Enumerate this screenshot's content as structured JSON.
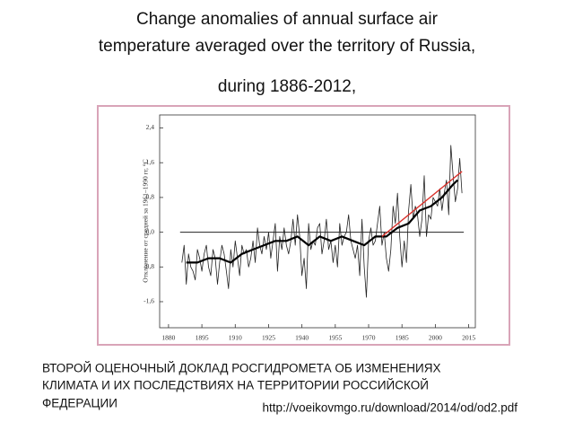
{
  "chart_data": {
    "type": "line",
    "title": "Change anomalies of annual surface air temperature averaged over the territory of Russia,",
    "subtitle": "during 1886-2012,",
    "ylabel": "Отклонение от средней за 1961–1990 гг, °С",
    "xlim": [
      1876,
      2018
    ],
    "ylim": [
      -2.2,
      2.7
    ],
    "xticks": [
      1880,
      1895,
      1910,
      1925,
      1940,
      1955,
      1970,
      1985,
      2000,
      2015
    ],
    "yticks": [
      {
        "value": -1.6,
        "label": "-1,6"
      },
      {
        "value": -0.8,
        "label": "-0,8"
      },
      {
        "value": 0,
        "label": "0,0"
      },
      {
        "value": 0.8,
        "label": "0,8"
      },
      {
        "value": 1.6,
        "label": "1,6"
      },
      {
        "value": 2.4,
        "label": "2,4"
      }
    ],
    "zero_line": true,
    "series": [
      {
        "color": "#222222",
        "width": 0.8,
        "x": [
          1886,
          1887,
          1888,
          1889,
          1890,
          1891,
          1892,
          1893,
          1894,
          1895,
          1896,
          1897,
          1898,
          1899,
          1900,
          1901,
          1902,
          1903,
          1904,
          1905,
          1906,
          1907,
          1908,
          1909,
          1910,
          1911,
          1912,
          1913,
          1914,
          1915,
          1916,
          1917,
          1918,
          1919,
          1920,
          1921,
          1922,
          1923,
          1924,
          1925,
          1926,
          1927,
          1928,
          1929,
          1930,
          1931,
          1932,
          1933,
          1934,
          1935,
          1936,
          1937,
          1938,
          1939,
          1940,
          1941,
          1942,
          1943,
          1944,
          1945,
          1946,
          1947,
          1948,
          1949,
          1950,
          1951,
          1952,
          1953,
          1954,
          1955,
          1956,
          1957,
          1958,
          1959,
          1960,
          1961,
          1962,
          1963,
          1964,
          1965,
          1966,
          1967,
          1968,
          1969,
          1970,
          1971,
          1972,
          1973,
          1974,
          1975,
          1976,
          1977,
          1978,
          1979,
          1980,
          1981,
          1982,
          1983,
          1984,
          1985,
          1986,
          1987,
          1988,
          1989,
          1990,
          1991,
          1992,
          1993,
          1994,
          1995,
          1996,
          1997,
          1998,
          1999,
          2000,
          2001,
          2002,
          2003,
          2004,
          2005,
          2006,
          2007,
          2008,
          2009,
          2010,
          2011,
          2012
        ],
        "values": [
          -0.7,
          -0.3,
          -1.2,
          -0.5,
          -0.8,
          -0.9,
          -1.1,
          -0.4,
          -0.6,
          -0.9,
          -0.5,
          -0.3,
          -0.8,
          -1.0,
          -0.4,
          -0.6,
          -1.2,
          -0.7,
          -0.3,
          -0.5,
          -0.9,
          -1.3,
          -0.4,
          -0.8,
          -0.2,
          -0.6,
          -1.0,
          -0.3,
          -0.5,
          -0.4,
          -0.8,
          -0.6,
          -0.2,
          -0.7,
          0.1,
          -0.3,
          -0.5,
          -0.1,
          -0.4,
          0.0,
          -0.6,
          -0.2,
          0.2,
          -0.9,
          -0.1,
          -0.4,
          0.1,
          -0.3,
          -0.5,
          -0.2,
          0.3,
          -0.3,
          0.4,
          -0.1,
          -1.0,
          -0.6,
          -1.3,
          0.2,
          -0.4,
          -0.2,
          -0.3,
          0.1,
          0.2,
          -0.5,
          -0.2,
          0.3,
          -0.4,
          -0.2,
          -0.7,
          -0.3,
          -0.8,
          0.2,
          -0.3,
          -0.1,
          0.0,
          0.4,
          -0.2,
          -0.4,
          -0.6,
          -0.3,
          -1.0,
          0.3,
          -0.8,
          -1.5,
          -0.2,
          0.1,
          -0.3,
          -0.2,
          0.2,
          0.6,
          -0.3,
          0.0,
          -0.6,
          -0.9,
          -0.4,
          0.6,
          0.2,
          0.9,
          -0.1,
          -0.8,
          -0.2,
          -0.7,
          0.5,
          1.1,
          0.3,
          0.6,
          0.4,
          -0.1,
          0.3,
          1.3,
          -0.1,
          0.4,
          0.3,
          0.8,
          0.7,
          0.6,
          1.0,
          0.5,
          0.9,
          1.2,
          0.4,
          2.0,
          1.3,
          0.7,
          1.0,
          1.7,
          0.9
        ]
      },
      {
        "color": "#000000",
        "width": 2.2,
        "x": [
          1888,
          1893,
          1898,
          1903,
          1908,
          1913,
          1918,
          1923,
          1928,
          1933,
          1938,
          1943,
          1948,
          1953,
          1958,
          1963,
          1968,
          1973,
          1978,
          1983,
          1988,
          1993,
          1998,
          2003,
          2008,
          2010
        ],
        "values": [
          -0.7,
          -0.7,
          -0.6,
          -0.6,
          -0.7,
          -0.5,
          -0.4,
          -0.3,
          -0.2,
          -0.2,
          -0.1,
          -0.3,
          -0.1,
          -0.2,
          -0.1,
          -0.2,
          -0.3,
          -0.1,
          -0.1,
          0.1,
          0.2,
          0.5,
          0.6,
          0.8,
          1.1,
          1.2
        ]
      },
      {
        "color": "#d9302a",
        "width": 1.4,
        "x": [
          1976,
          2012
        ],
        "values": [
          -0.1,
          1.4
        ]
      }
    ]
  },
  "footer": {
    "source_lines": [
      "ВТОРОЙ ОЦЕНОЧНЫЙ ДОКЛАД РОСГИДРОМЕТА ОБ ИЗМЕНЕНИЯХ",
      "КЛИМАТА И ИХ ПОСЛЕДСТВИЯХ НА ТЕРРИТОРИИ РОССИЙСКОЙ",
      "ФЕДЕРАЦИИ"
    ],
    "url": "http://voeikovmgo.ru/download/2014/od/od2.pdf"
  }
}
